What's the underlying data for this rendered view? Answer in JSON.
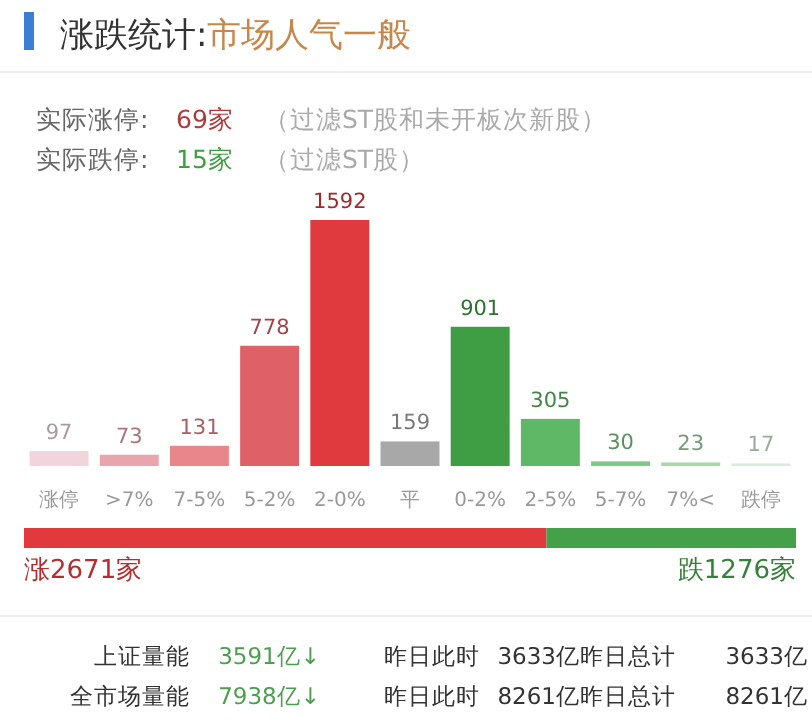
{
  "chart_data": [
    {
      "type": "other",
      "title": "涨跌统计:",
      "subtitle": "市场人气一般",
      "annotations": [
        "实际涨停:",
        "69家",
        "（过滤ST股和未开板次新股）",
        "实际跌停:",
        "15家",
        "（过滤ST股）"
      ]
    },
    {
      "type": "bar",
      "categories": [
        "涨停",
        ">7%",
        "7-5%",
        "5-2%",
        "2-0%",
        "平",
        "0-2%",
        "2-5%",
        "5-7%",
        "7%<",
        "跌停"
      ],
      "values": [
        97,
        73,
        131,
        778,
        1592,
        159,
        901,
        305,
        30,
        23,
        17
      ],
      "colors": [
        "#f2d4dc",
        "#e8a5ad",
        "#e8868c",
        "#e06068",
        "#e0393e",
        "#a8a8a8",
        "#3f9e44",
        "#5fb865",
        "#80c886",
        "#a8d8aa",
        "#d8ecd8"
      ],
      "data_labels": true
    },
    {
      "type": "bar",
      "orientation": "horizontal",
      "stacked": true,
      "categories": [
        null
      ],
      "series": [
        {
          "color": "#e0393e",
          "values": [
            2671
          ],
          "value_labels": [
            "涨2671家"
          ]
        },
        {
          "color": "#45a04a",
          "values": [
            1276
          ],
          "value_labels": [
            "跌1276家"
          ]
        }
      ]
    },
    {
      "type": "other",
      "annotations": [
        "上证量能",
        "3591亿↓",
        "昨日此时",
        "3633亿",
        "昨日总计",
        "3633亿",
        "全市场量能",
        "7938亿↓",
        "昨日此时",
        "8261亿",
        "昨日总计",
        "8261亿"
      ]
    }
  ]
}
